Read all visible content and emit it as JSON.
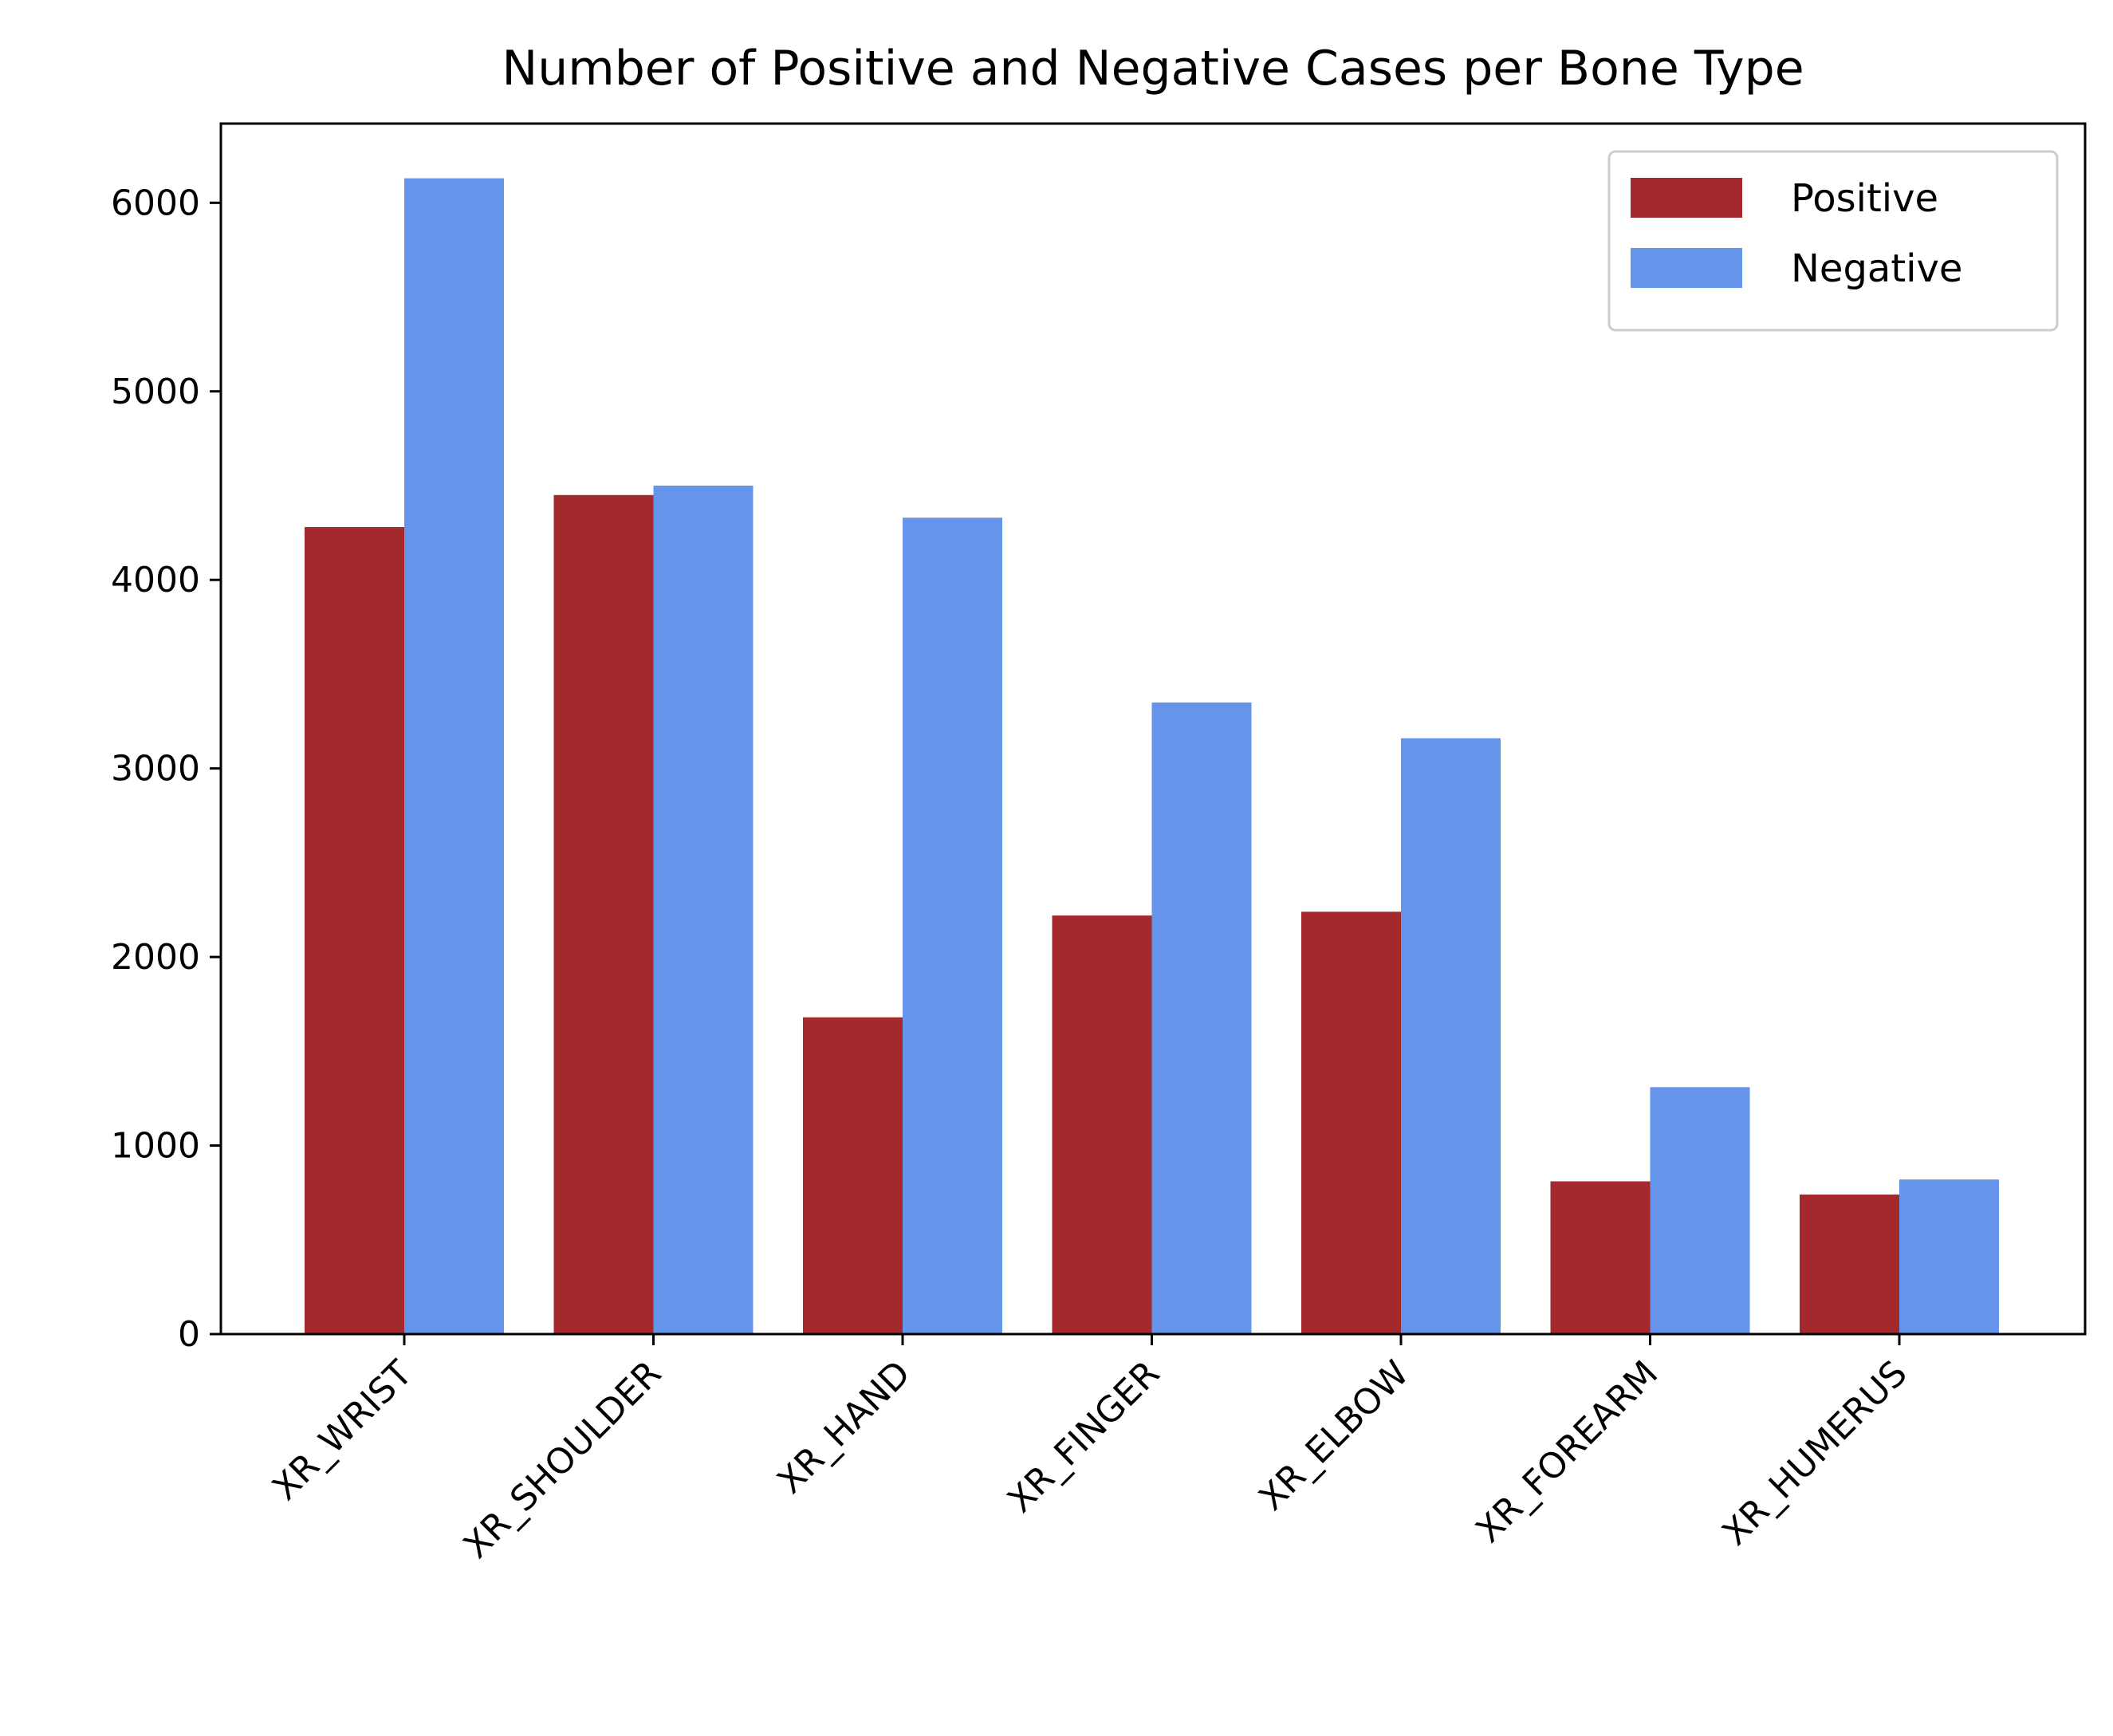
{
  "chart_data": {
    "type": "bar",
    "title": "Number of Positive and Negative Cases per Bone Type",
    "xlabel": "",
    "ylabel": "",
    "categories": [
      "XR_WRIST",
      "XR_SHOULDER",
      "XR_HAND",
      "XR_FINGER",
      "XR_ELBOW",
      "XR_FOREARM",
      "XR_HUMERUS"
    ],
    "series": [
      {
        "name": "Positive",
        "color": "#a3292c",
        "values": [
          4280,
          4450,
          1680,
          2220,
          2240,
          810,
          740
        ]
      },
      {
        "name": "Negative",
        "color": "#6495eb",
        "values": [
          6130,
          4500,
          4330,
          3350,
          3160,
          1310,
          820
        ]
      }
    ],
    "ylim": [
      0,
      6420
    ],
    "yticks": [
      0,
      1000,
      2000,
      3000,
      4000,
      5000,
      6000
    ],
    "grid": false,
    "legend_position": "top-right",
    "xtick_rotation_deg": 45
  }
}
